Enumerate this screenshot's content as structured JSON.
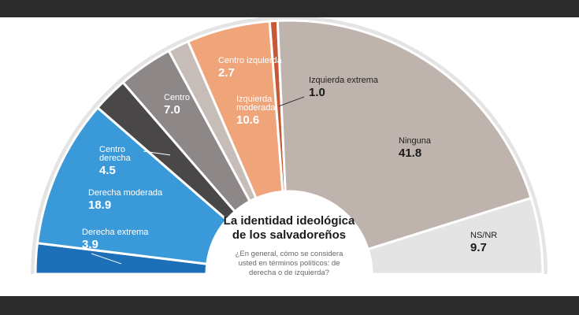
{
  "colors": {
    "background": "#2b2b2b",
    "panel": "#ffffff",
    "track": "#e4e4e4"
  },
  "title_lines": [
    "La identidad ideológica",
    "de los salvadoreños"
  ],
  "question_lines": [
    "¿En general, cómo se considera",
    "usted en términos políticos: de",
    "derecha o de izquierda?"
  ],
  "chart_data": {
    "type": "pie",
    "subtype": "semicircle",
    "title": "La identidad ideológica de los salvadoreños",
    "subtitle": "¿En general, cómo se considera usted en términos políticos: de derecha o de izquierda?",
    "categories": [
      "Derecha extrema",
      "Derecha moderada",
      "Centro derecha",
      "Centro",
      "Centro izquierda",
      "Izquierda moderada",
      "Izquierda extrema",
      "Ninguna",
      "NS/NR"
    ],
    "values": [
      3.9,
      18.9,
      4.5,
      7.0,
      2.7,
      10.6,
      1.0,
      41.8,
      9.7
    ],
    "series_colors": [
      "#1d6fb8",
      "#3a9ad9",
      "#4a4748",
      "#8d8788",
      "#c6bdb9",
      "#f0a47a",
      "#c65a36",
      "#bfb3ae",
      "#e4e4e4"
    ],
    "labels": [
      {
        "name_lines": [
          "Derecha extrema"
        ],
        "value": "3.9"
      },
      {
        "name_lines": [
          "Derecha moderada"
        ],
        "value": "18.9"
      },
      {
        "name_lines": [
          "Centro",
          "derecha"
        ],
        "value": "4.5"
      },
      {
        "name_lines": [
          "Centro"
        ],
        "value": "7.0"
      },
      {
        "name_lines": [
          "Centro izquierda"
        ],
        "value": "2.7"
      },
      {
        "name_lines": [
          "Izquierda",
          "moderada"
        ],
        "value": "10.6"
      },
      {
        "name_lines": [
          "Izquierda extrema"
        ],
        "value": "1.0"
      },
      {
        "name_lines": [
          "Ninguna"
        ],
        "value": "41.8"
      },
      {
        "name_lines": [
          "NS/NR"
        ],
        "value": "9.7"
      }
    ]
  }
}
